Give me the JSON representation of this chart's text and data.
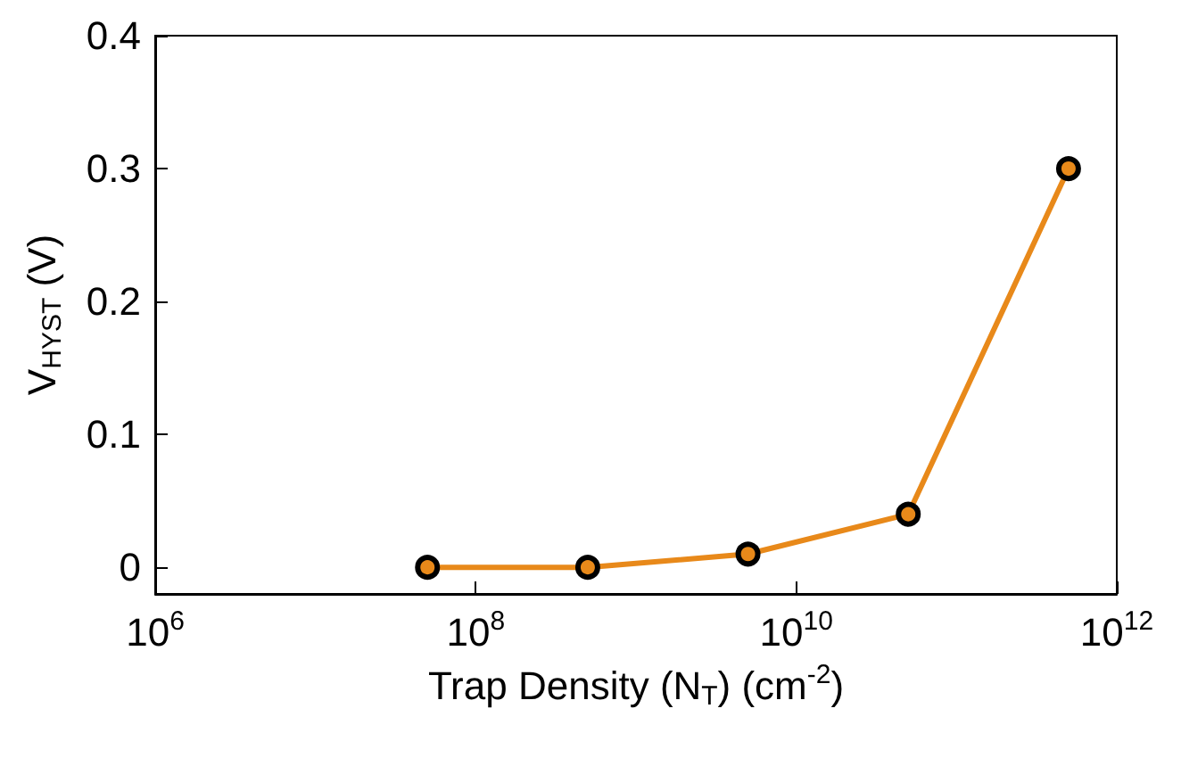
{
  "chart_data": {
    "type": "line",
    "xlabel": "Trap Density (N$_{T}$) (cm$^{-2}$)",
    "ylabel": "V$_{HYST}$ (V)",
    "x": [
      50000000,
      500000000,
      5000000000,
      50000000000,
      500000000000
    ],
    "series": [
      {
        "color": "#e8891a",
        "values": [
          0,
          0,
          0.01,
          0.04,
          0.3
        ]
      }
    ],
    "log": "x",
    "xlim": [
      1000000,
      1000000000000
    ],
    "xticks": [
      {
        "value": 1000000,
        "label": "10$^{6}$"
      },
      {
        "value": 100000000,
        "label": "10$^{8}$"
      },
      {
        "value": 10000000000,
        "label": "10$^{10}$"
      },
      {
        "value": 1000000000000,
        "label": "10$^{12}$"
      }
    ],
    "ylim": [
      -0.02,
      0.4
    ],
    "yticks": [
      0,
      0.1,
      0.2,
      0.3,
      0.4
    ],
    "grid": false,
    "marker": "circle",
    "line_style": "solid"
  }
}
